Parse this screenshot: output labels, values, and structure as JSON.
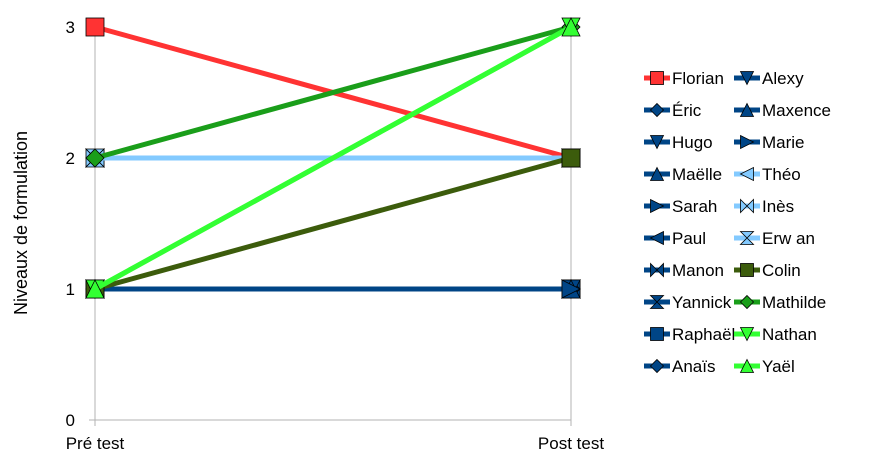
{
  "chart_data": {
    "type": "line",
    "title": "",
    "xlabel": "",
    "ylabel": "Niveaux de formulation",
    "categories": [
      "Pré test",
      "Post test"
    ],
    "ylim": [
      0,
      3
    ],
    "yticks": [
      "0",
      "1",
      "2",
      "3"
    ],
    "grid": "vertical",
    "legend_position": "right",
    "series": [
      {
        "name": "Florian",
        "values": [
          3,
          2
        ],
        "color": "#ff3333",
        "marker": "square"
      },
      {
        "name": "Éric",
        "values": [
          1,
          1
        ],
        "color": "#004586",
        "marker": "diamond"
      },
      {
        "name": "Hugo",
        "values": [
          1,
          1
        ],
        "color": "#004586",
        "marker": "triangle-down"
      },
      {
        "name": "Maëlle",
        "values": [
          1,
          1
        ],
        "color": "#004586",
        "marker": "triangle-up"
      },
      {
        "name": "Sarah",
        "values": [
          1,
          1
        ],
        "color": "#004586",
        "marker": "triangle-right"
      },
      {
        "name": "Paul",
        "values": [
          1,
          1
        ],
        "color": "#004586",
        "marker": "triangle-left"
      },
      {
        "name": "Manon",
        "values": [
          1,
          1
        ],
        "color": "#004586",
        "marker": "bowtie-h"
      },
      {
        "name": "Yannick",
        "values": [
          1,
          1
        ],
        "color": "#004586",
        "marker": "hourglass"
      },
      {
        "name": "Raphaël",
        "values": [
          1,
          1
        ],
        "color": "#004586",
        "marker": "square"
      },
      {
        "name": "Anaïs",
        "values": [
          1,
          1
        ],
        "color": "#004586",
        "marker": "diamond"
      },
      {
        "name": "Alexy",
        "values": [
          1,
          1
        ],
        "color": "#004586",
        "marker": "triangle-down"
      },
      {
        "name": "Maxence",
        "values": [
          1,
          1
        ],
        "color": "#004586",
        "marker": "triangle-up"
      },
      {
        "name": "Marie",
        "values": [
          1,
          1
        ],
        "color": "#004586",
        "marker": "triangle-right"
      },
      {
        "name": "Théo",
        "values": [
          2,
          2
        ],
        "color": "#83caff",
        "marker": "triangle-left"
      },
      {
        "name": "Inès",
        "values": [
          2,
          2
        ],
        "color": "#83caff",
        "marker": "bowtie-h"
      },
      {
        "name": "Erw an",
        "values": [
          2,
          2
        ],
        "color": "#83caff",
        "marker": "hourglass"
      },
      {
        "name": "Colin",
        "values": [
          1,
          2
        ],
        "color": "#3c5c0c",
        "marker": "square"
      },
      {
        "name": "Mathilde",
        "values": [
          2,
          3
        ],
        "color": "#1a9e1a",
        "marker": "diamond"
      },
      {
        "name": "Nathan",
        "values": [
          1,
          3
        ],
        "color": "#33ff33",
        "marker": "triangle-down"
      },
      {
        "name": "Yaël",
        "values": [
          1,
          3
        ],
        "color": "#33ff33",
        "marker": "triangle-up"
      }
    ]
  }
}
